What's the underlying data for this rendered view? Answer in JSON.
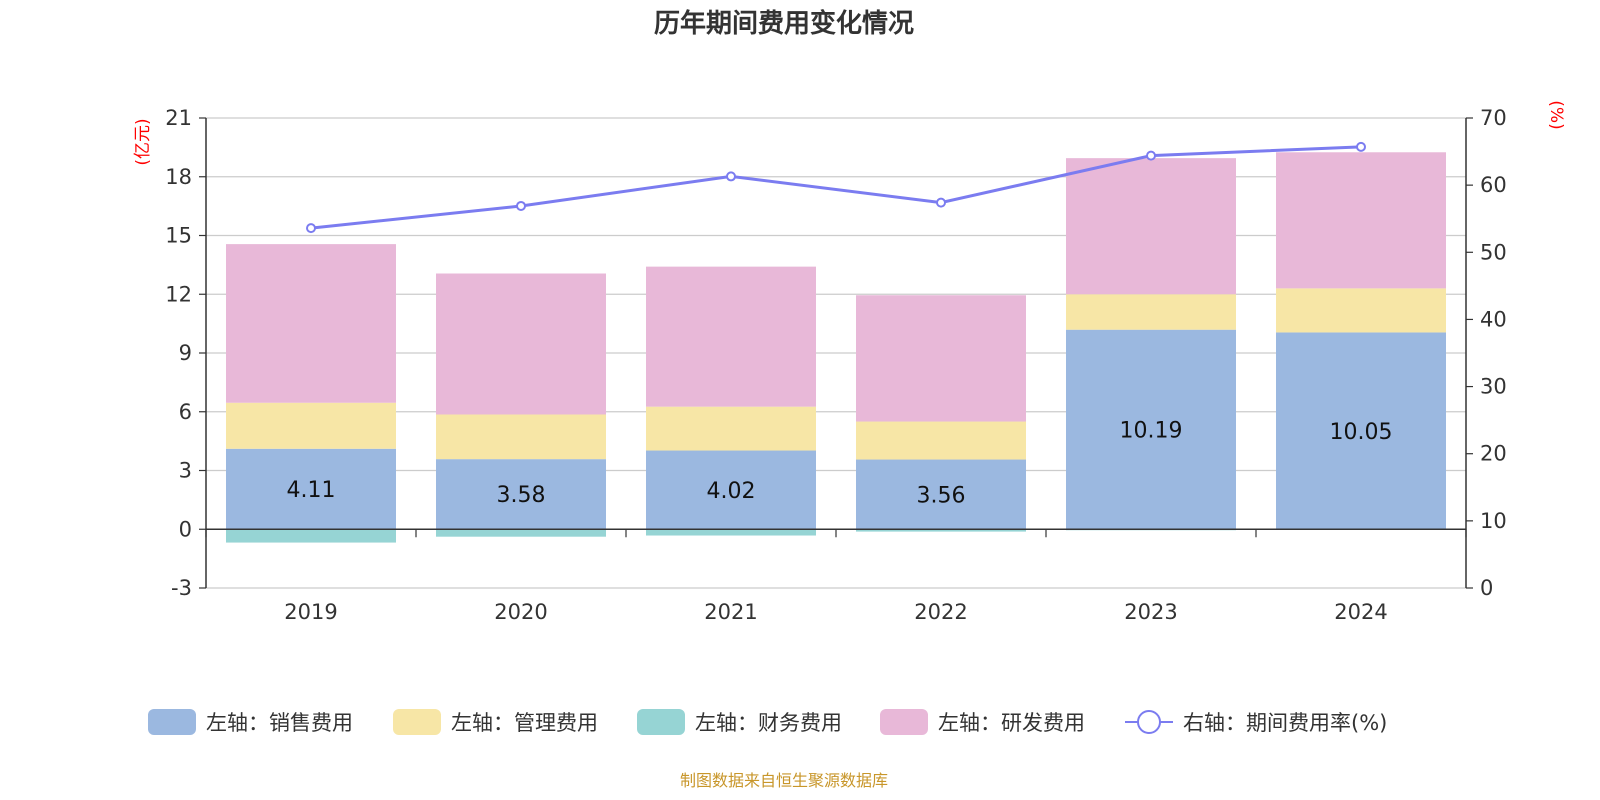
{
  "chart_data": {
    "type": "bar",
    "title": "历年期间费用变化情况",
    "categories": [
      "2019",
      "2020",
      "2021",
      "2022",
      "2023",
      "2024"
    ],
    "left_axis": {
      "unit": "(亿元)",
      "ylim": [
        -3,
        21
      ],
      "ticks": [
        -3,
        0,
        3,
        6,
        9,
        12,
        15,
        18,
        21
      ]
    },
    "right_axis": {
      "unit": "(%)",
      "ylim": [
        0,
        70
      ],
      "ticks": [
        0,
        10,
        20,
        30,
        40,
        50,
        60,
        70
      ]
    },
    "series": [
      {
        "name": "左轴：销售费用",
        "type": "bar",
        "axis": "left",
        "color": "#9bb8e0",
        "values": [
          4.11,
          3.58,
          4.02,
          3.56,
          10.19,
          10.05
        ],
        "labels": [
          "4.11",
          "3.58",
          "4.02",
          "3.56",
          "10.19",
          "10.05"
        ]
      },
      {
        "name": "左轴：管理费用",
        "type": "bar",
        "axis": "left",
        "color": "#f7e6a6",
        "values": [
          2.35,
          2.28,
          2.24,
          1.94,
          1.81,
          2.25
        ]
      },
      {
        "name": "左轴：财务费用",
        "type": "bar",
        "axis": "left",
        "color": "#96d4d4",
        "values": [
          -0.68,
          -0.38,
          -0.32,
          -0.12,
          -0.05,
          -0.03
        ]
      },
      {
        "name": "左轴：研发费用",
        "type": "bar",
        "axis": "left",
        "color": "#e8b8d8",
        "values": [
          8.1,
          7.2,
          7.15,
          6.45,
          6.95,
          6.95
        ]
      },
      {
        "name": "右轴：期间费用率(%)",
        "type": "line",
        "axis": "right",
        "color": "#7b7cf0",
        "values": [
          53.6,
          56.9,
          61.3,
          57.4,
          64.4,
          65.7
        ]
      }
    ],
    "grid": true,
    "legend_position": "bottom"
  },
  "source_text": "制图数据来自恒生聚源数据库"
}
